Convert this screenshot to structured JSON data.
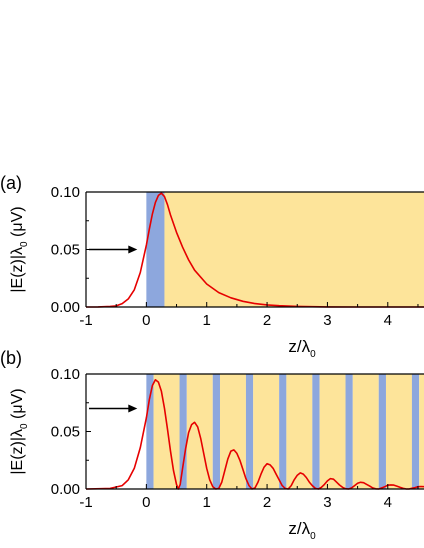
{
  "chart_data": [
    {
      "panel_label": "(a)",
      "type": "line",
      "xlabel": "z/λ",
      "xlabel_subscript": "0",
      "ylabel": "|E(z)|λ",
      "ylabel_subscript": "0",
      "ylabel_suffix": " (μV)",
      "xlim": [
        -1,
        4.6
      ],
      "ylim": [
        0,
        0.1
      ],
      "x_ticks": [
        -1,
        0,
        1,
        2,
        3,
        4
      ],
      "x_tick_labels": [
        "-1",
        "0",
        "1",
        "2",
        "3",
        "4"
      ],
      "y_ticks": [
        0,
        0.05,
        0.1
      ],
      "y_tick_labels": [
        "0.00",
        "0.05",
        "0.10"
      ],
      "regions": [
        {
          "x0": 0.0,
          "x1": 0.3,
          "color": "#8da7dd"
        },
        {
          "x0": 0.3,
          "x1": 4.6,
          "color": "#fde49a"
        }
      ],
      "arrow": {
        "y": 0.05,
        "x_from": -0.95,
        "x_to": -0.15
      },
      "series": [
        {
          "color": "#e60000",
          "x": [
            -1,
            -0.8,
            -0.6,
            -0.5,
            -0.4,
            -0.3,
            -0.2,
            -0.1,
            0,
            0.05,
            0.1,
            0.15,
            0.2,
            0.25,
            0.3,
            0.35,
            0.4,
            0.5,
            0.6,
            0.7,
            0.8,
            1.0,
            1.2,
            1.4,
            1.6,
            1.8,
            2.0,
            2.2,
            2.5,
            3.0,
            3.5,
            4.0,
            4.6
          ],
          "y": [
            0,
            0.0001,
            0.0005,
            0.001,
            0.003,
            0.007,
            0.015,
            0.03,
            0.054,
            0.068,
            0.081,
            0.091,
            0.097,
            0.099,
            0.096,
            0.089,
            0.08,
            0.065,
            0.052,
            0.041,
            0.032,
            0.02,
            0.0125,
            0.008,
            0.005,
            0.003,
            0.0018,
            0.0011,
            0.0005,
            0.0001,
            0,
            0,
            0
          ]
        }
      ]
    },
    {
      "panel_label": "(b)",
      "type": "line",
      "xlabel": "z/λ",
      "xlabel_subscript": "0",
      "ylabel": "|E(z)|λ",
      "ylabel_subscript": "0",
      "ylabel_suffix": " (μV)",
      "xlim": [
        -1,
        4.6
      ],
      "ylim": [
        0,
        0.1
      ],
      "x_ticks": [
        -1,
        0,
        1,
        2,
        3,
        4
      ],
      "x_tick_labels": [
        "-1",
        "0",
        "1",
        "2",
        "3",
        "4"
      ],
      "y_ticks": [
        0,
        0.05,
        0.1
      ],
      "y_tick_labels": [
        "0.00",
        "0.05",
        "0.10"
      ],
      "layers": {
        "start": 0.0,
        "period": 0.55,
        "blue_width": 0.12,
        "colors": [
          "#8da7dd",
          "#fde49a"
        ]
      },
      "arrow": {
        "y": 0.07,
        "x_from": -0.95,
        "x_to": -0.15
      },
      "series": [
        {
          "color": "#e60000",
          "x": [
            -1,
            -0.6,
            -0.4,
            -0.3,
            -0.2,
            -0.1,
            0,
            0.05,
            0.1,
            0.15,
            0.2,
            0.25,
            0.3,
            0.35,
            0.4,
            0.45,
            0.5,
            0.53,
            0.56,
            0.6,
            0.65,
            0.7,
            0.75,
            0.8,
            0.85,
            0.9,
            0.95,
            1.0,
            1.05,
            1.1,
            1.15,
            1.2,
            1.25,
            1.3,
            1.35,
            1.4,
            1.45,
            1.5,
            1.55,
            1.6,
            1.65,
            1.7,
            1.75,
            1.8,
            1.85,
            1.9,
            1.95,
            2.0,
            2.05,
            2.1,
            2.15,
            2.2,
            2.25,
            2.3,
            2.35,
            2.4,
            2.45,
            2.5,
            2.55,
            2.6,
            2.65,
            2.7,
            2.75,
            2.8,
            2.85,
            2.9,
            2.95,
            3.0,
            3.05,
            3.1,
            3.15,
            3.2,
            3.25,
            3.3,
            3.35,
            3.4,
            3.45,
            3.5,
            3.55,
            3.6,
            3.65,
            3.7,
            3.75,
            3.8,
            3.85,
            3.9,
            3.95,
            4.0,
            4.05,
            4.1,
            4.15,
            4.2,
            4.25,
            4.3,
            4.35,
            4.4,
            4.45,
            4.5,
            4.55,
            4.6
          ],
          "y": [
            0,
            0.0005,
            0.003,
            0.008,
            0.018,
            0.036,
            0.062,
            0.078,
            0.09,
            0.095,
            0.093,
            0.085,
            0.07,
            0.052,
            0.033,
            0.016,
            0.004,
            0,
            0.004,
            0.018,
            0.035,
            0.049,
            0.056,
            0.058,
            0.054,
            0.044,
            0.031,
            0.018,
            0.008,
            0.002,
            0,
            0.0005,
            0.006,
            0.016,
            0.026,
            0.033,
            0.034,
            0.031,
            0.025,
            0.017,
            0.009,
            0.003,
            0,
            0.001,
            0.006,
            0.013,
            0.019,
            0.022,
            0.021,
            0.018,
            0.013,
            0.008,
            0.003,
            0.0005,
            0,
            0.003,
            0.008,
            0.012,
            0.014,
            0.013,
            0.01,
            0.006,
            0.003,
            0.0005,
            0,
            0.0015,
            0.004,
            0.007,
            0.009,
            0.0085,
            0.006,
            0.0035,
            0.0015,
            0.0003,
            0,
            0.001,
            0.003,
            0.005,
            0.0058,
            0.0055,
            0.004,
            0.0025,
            0.001,
            0.0002,
            0,
            0.001,
            0.002,
            0.0033,
            0.0036,
            0.0034,
            0.0025,
            0.0015,
            0.0006,
            0.0001,
            0,
            0.0006,
            0.0012,
            0.002,
            0.0022,
            0.002
          ]
        }
      ]
    }
  ]
}
